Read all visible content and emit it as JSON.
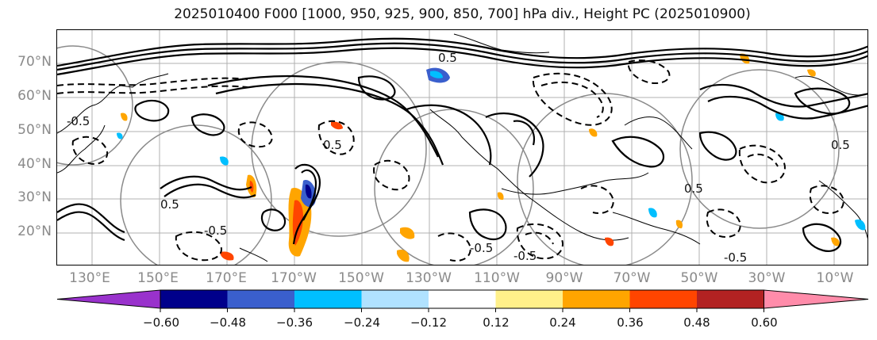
{
  "title": "2025010400 F000 [1000, 950, 925, 900, 850, 700] hPa div., Height PC (2025010900)",
  "lat_labels": [
    "70°N",
    "60°N",
    "50°N",
    "40°N",
    "30°N",
    "20°N"
  ],
  "lon_labels": [
    "130°E",
    "150°E",
    "170°E",
    "170°W",
    "150°W",
    "130°W",
    "110°W",
    "90°W",
    "70°W",
    "50°W",
    "30°W",
    "10°W"
  ],
  "colorbar": {
    "colors": [
      "#9932cc",
      "#00008b",
      "#3a5fcd",
      "#00bfff",
      "#b0e2ff",
      "#ffffff",
      "#fff08a",
      "#ffa500",
      "#ff4500",
      "#b22222",
      "#ff8caa"
    ],
    "tick_labels": [
      "−0.60",
      "−0.48",
      "−0.36",
      "−0.24",
      "−0.12",
      "0.12",
      "0.24",
      "0.36",
      "0.48",
      "0.60"
    ]
  },
  "contour_labels": [
    "0.5",
    "-0.5",
    "0.5",
    "0.5",
    "-0.5",
    "0.5",
    "-0.5",
    "-0.5",
    "0.5",
    "-0.5"
  ]
}
